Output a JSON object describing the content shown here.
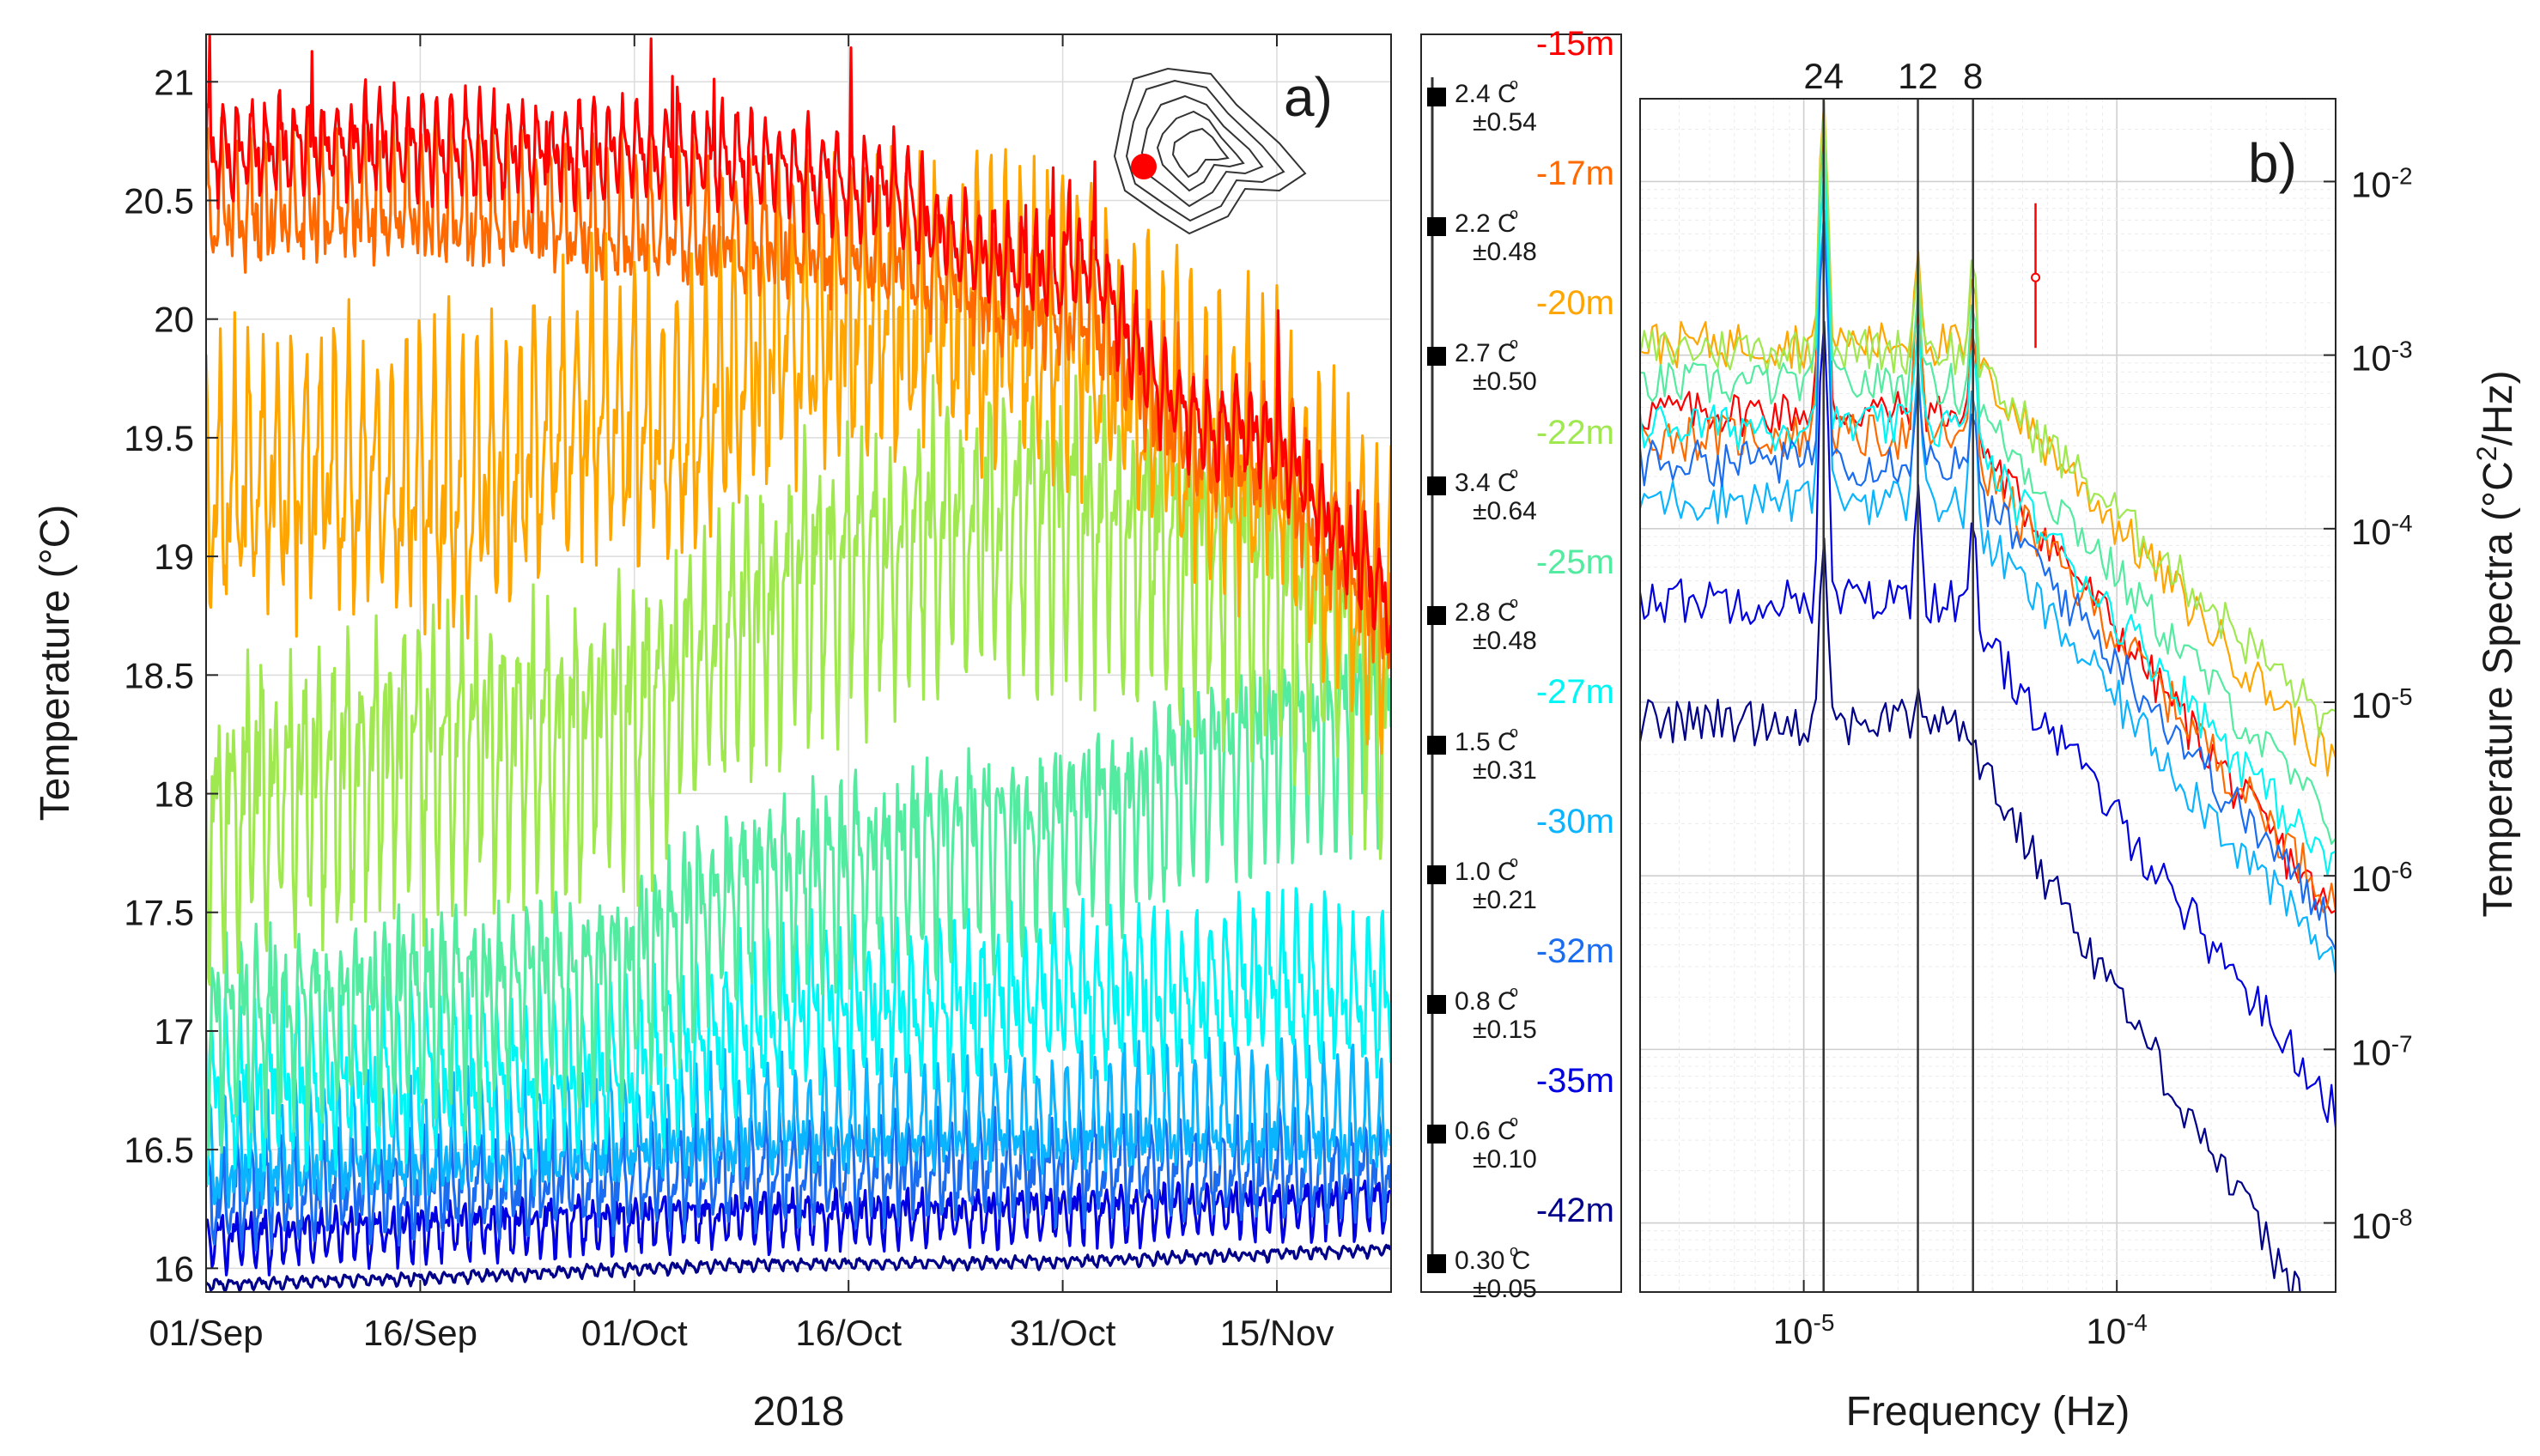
{
  "chart_data": [
    {
      "id": "a",
      "type": "line",
      "panel_label": "a)",
      "xlabel": "2018",
      "ylabel": "Temperature (°C)",
      "ylim": [
        15.9,
        21.2
      ],
      "xlim_days": [
        0,
        83
      ],
      "yticks": [
        {
          "v": 16,
          "label": "16"
        },
        {
          "v": 16.5,
          "label": "16.5"
        },
        {
          "v": 17,
          "label": "17"
        },
        {
          "v": 17.5,
          "label": "17.5"
        },
        {
          "v": 18,
          "label": "18"
        },
        {
          "v": 18.5,
          "label": "18.5"
        },
        {
          "v": 19,
          "label": "19"
        },
        {
          "v": 19.5,
          "label": "19.5"
        },
        {
          "v": 20,
          "label": "20"
        },
        {
          "v": 20.5,
          "label": "20.5"
        },
        {
          "v": 21,
          "label": "21"
        }
      ],
      "xticks": [
        {
          "day": 0,
          "label": "01/Sep"
        },
        {
          "day": 15,
          "label": "16/Sep"
        },
        {
          "day": 30,
          "label": "01/Oct"
        },
        {
          "day": 45,
          "label": "16/Oct"
        },
        {
          "day": 60,
          "label": "31/Oct"
        },
        {
          "day": 75,
          "label": "15/Nov"
        }
      ],
      "series": [
        {
          "name": "-15m",
          "color": "#ff0000",
          "baseline": [
            [
              0,
              20.7
            ],
            [
              10,
              20.75
            ],
            [
              20,
              20.72
            ],
            [
              30,
              20.7
            ],
            [
              40,
              20.65
            ],
            [
              48,
              20.55
            ],
            [
              53,
              20.3
            ],
            [
              58,
              20.2
            ],
            [
              62,
              20.25
            ],
            [
              66,
              19.75
            ],
            [
              70,
              19.55
            ],
            [
              75,
              19.5
            ],
            [
              78,
              19.2
            ],
            [
              83,
              18.78
            ]
          ],
          "amp": 0.25
        },
        {
          "name": "-17m",
          "color": "#ff6a00",
          "baseline": [
            [
              0,
              20.45
            ],
            [
              10,
              20.5
            ],
            [
              20,
              20.45
            ],
            [
              30,
              20.4
            ],
            [
              40,
              20.35
            ],
            [
              48,
              20.3
            ],
            [
              55,
              20.1
            ],
            [
              62,
              20.05
            ],
            [
              66,
              19.7
            ],
            [
              70,
              19.45
            ],
            [
              75,
              19.4
            ],
            [
              78,
              19.1
            ],
            [
              83,
              18.75
            ]
          ],
          "amp": 0.35
        },
        {
          "name": "-20m",
          "color": "#ffa500",
          "baseline": [
            [
              0,
              19.3
            ],
            [
              10,
              19.35
            ],
            [
              20,
              19.3
            ],
            [
              27,
              19.6
            ],
            [
              33,
              19.5
            ],
            [
              38,
              19.8
            ],
            [
              45,
              20.0
            ],
            [
              52,
              20.0
            ],
            [
              60,
              19.95
            ],
            [
              66,
              19.65
            ],
            [
              70,
              19.45
            ],
            [
              75,
              19.4
            ],
            [
              78,
              19.1
            ],
            [
              83,
              18.75
            ]
          ],
          "amp": 0.7
        },
        {
          "name": "-22m",
          "color": "#9fe84f",
          "baseline": [
            [
              0,
              17.9
            ],
            [
              10,
              18.1
            ],
            [
              20,
              18.2
            ],
            [
              30,
              18.3
            ],
            [
              36,
              18.6
            ],
            [
              42,
              18.9
            ],
            [
              50,
              19.1
            ],
            [
              58,
              19.15
            ],
            [
              64,
              19.1
            ],
            [
              70,
              19.0
            ],
            [
              75,
              18.9
            ],
            [
              80,
              18.6
            ],
            [
              83,
              18.2
            ]
          ],
          "amp": 0.7
        },
        {
          "name": "-25m",
          "color": "#52eba0",
          "baseline": [
            [
              0,
              17.0
            ],
            [
              10,
              17.1
            ],
            [
              20,
              17.15
            ],
            [
              30,
              17.25
            ],
            [
              36,
              17.55
            ],
            [
              42,
              17.65
            ],
            [
              50,
              17.75
            ],
            [
              58,
              17.85
            ],
            [
              64,
              17.9
            ],
            [
              70,
              18.1
            ],
            [
              75,
              18.2
            ],
            [
              80,
              18.3
            ],
            [
              83,
              18.3
            ]
          ],
          "amp": 0.5
        },
        {
          "name": "-27m",
          "color": "#00f5f5",
          "baseline": [
            [
              0,
              16.75
            ],
            [
              10,
              16.8
            ],
            [
              20,
              16.82
            ],
            [
              30,
              16.85
            ],
            [
              36,
              17.0
            ],
            [
              42,
              17.1
            ],
            [
              50,
              17.1
            ],
            [
              58,
              17.15
            ],
            [
              66,
              17.15
            ],
            [
              75,
              17.2
            ],
            [
              83,
              17.15
            ]
          ],
          "amp": 0.4
        },
        {
          "name": "-30m",
          "color": "#0ab4ff",
          "baseline": [
            [
              0,
              16.45
            ],
            [
              10,
              16.5
            ],
            [
              20,
              16.52
            ],
            [
              30,
              16.55
            ],
            [
              40,
              16.6
            ],
            [
              50,
              16.6
            ],
            [
              60,
              16.62
            ],
            [
              70,
              16.65
            ],
            [
              83,
              16.6
            ]
          ],
          "amp": 0.3
        },
        {
          "name": "-32m",
          "color": "#1a6cf0",
          "baseline": [
            [
              0,
              16.3
            ],
            [
              10,
              16.33
            ],
            [
              20,
              16.35
            ],
            [
              30,
              16.38
            ],
            [
              40,
              16.4
            ],
            [
              50,
              16.42
            ],
            [
              60,
              16.42
            ],
            [
              70,
              16.42
            ],
            [
              83,
              16.4
            ]
          ],
          "amp": 0.25
        },
        {
          "name": "-35m",
          "color": "#0000e0",
          "baseline": [
            [
              0,
              16.12
            ],
            [
              10,
              16.15
            ],
            [
              20,
              16.18
            ],
            [
              30,
              16.2
            ],
            [
              40,
              16.22
            ],
            [
              50,
              16.22
            ],
            [
              60,
              16.24
            ],
            [
              70,
              16.25
            ],
            [
              83,
              16.28
            ]
          ],
          "amp": 0.14
        },
        {
          "name": "-42m",
          "color": "#00008b",
          "baseline": [
            [
              0,
              15.93
            ],
            [
              10,
              15.95
            ],
            [
              20,
              15.97
            ],
            [
              30,
              16.0
            ],
            [
              40,
              16.02
            ],
            [
              50,
              16.02
            ],
            [
              60,
              16.03
            ],
            [
              70,
              16.05
            ],
            [
              83,
              16.08
            ]
          ],
          "amp": 0.03
        }
      ]
    },
    {
      "id": "b",
      "type": "line",
      "panel_label": "b)",
      "xscale": "log",
      "yscale": "log",
      "xlabel": "Frequency (Hz)",
      "ylabel": "Temperature Spectra (°C",
      "ylabel_sup": "2",
      "ylabel_tail": "/Hz)",
      "xlim": [
        3e-06,
        0.0005
      ],
      "ylim": [
        4e-09,
        0.03
      ],
      "xticks": [
        {
          "v": 1e-05,
          "base": "10",
          "exp": "-5"
        },
        {
          "v": 0.0001,
          "base": "10",
          "exp": "-4"
        }
      ],
      "yticks": [
        {
          "v": 1e-08,
          "base": "10",
          "exp": "-8"
        },
        {
          "v": 1e-07,
          "base": "10",
          "exp": "-7"
        },
        {
          "v": 1e-06,
          "base": "10",
          "exp": "-6"
        },
        {
          "v": 1e-05,
          "base": "10",
          "exp": "-5"
        },
        {
          "v": 0.0001,
          "base": "10",
          "exp": "-4"
        },
        {
          "v": 0.001,
          "base": "10",
          "exp": "-3"
        },
        {
          "v": 0.01,
          "base": "10",
          "exp": "-2"
        }
      ],
      "period_lines": [
        {
          "label": "24",
          "freq": 1.157e-05
        },
        {
          "label": "12",
          "freq": 2.315e-05
        },
        {
          "label": "8",
          "freq": 3.472e-05
        }
      ],
      "error_bar": {
        "freq": 5.5e-05,
        "center": 0.0028,
        "low": 0.0011,
        "high": 0.0075
      },
      "series": [
        {
          "name": "-15m",
          "color": "#ff0000",
          "level": 0.00048,
          "peak24": 0.025,
          "peak12": 0.0022,
          "peak8": 0.0014,
          "tail": 0.0,
          "rolloff": 2.4
        },
        {
          "name": "-17m",
          "color": "#ff6a00",
          "level": 0.00035,
          "peak24": 0.02,
          "peak12": 0.0024,
          "peak8": 0.0016,
          "tail": 0.0,
          "rolloff": 2.2
        },
        {
          "name": "-20m",
          "color": "#ffa500",
          "level": 0.0012,
          "peak24": 0.03,
          "peak12": 0.004,
          "peak8": 0.003,
          "tail": 0.0,
          "rolloff": 2.0
        },
        {
          "name": "-22m",
          "color": "#9fe84f",
          "level": 0.0011,
          "peak24": 0.028,
          "peak12": 0.0035,
          "peak8": 0.004,
          "tail": 0.0,
          "rolloff": 1.8
        },
        {
          "name": "-25m",
          "color": "#52eba0",
          "level": 0.0007,
          "peak24": 0.018,
          "peak12": 0.0025,
          "peak8": 0.0022,
          "tail": 0.0,
          "rolloff": 2.1
        },
        {
          "name": "-27m",
          "color": "#00f5f5",
          "level": 0.0004,
          "peak24": 0.012,
          "peak12": 0.0015,
          "peak8": 0.0012,
          "tail": 0.0,
          "rolloff": 2.1
        },
        {
          "name": "-30m",
          "color": "#0ab4ff",
          "level": 0.00015,
          "peak24": 0.007,
          "peak12": 0.0009,
          "peak8": 0.0007,
          "tail": 0.0,
          "rolloff": 2.2
        },
        {
          "name": "-32m",
          "color": "#1a6cf0",
          "level": 0.00025,
          "peak24": 0.006,
          "peak12": 0.0007,
          "peak8": 0.0005,
          "tail": 0.0,
          "rolloff": 2.2
        },
        {
          "name": "-35m",
          "color": "#0000e0",
          "level": 4e-05,
          "peak24": 0.0016,
          "peak12": 0.00018,
          "peak8": 0.00012,
          "tail": 0.0,
          "rolloff": 2.4
        },
        {
          "name": "-42m",
          "color": "#00008b",
          "level": 8e-06,
          "peak24": 9e-05,
          "peak12": 1.2e-05,
          "peak8": 6e-06,
          "tail": 0.0,
          "rolloff": 3.0
        }
      ]
    }
  ],
  "legend": {
    "entries": [
      {
        "depth": "-15m",
        "color": "#ff0000",
        "std": "2.4 C",
        "err": "±0.54"
      },
      {
        "depth": "-17m",
        "color": "#ff6a00",
        "std": "2.2 C",
        "err": "±0.48"
      },
      {
        "depth": "-20m",
        "color": "#ffa500",
        "std": "2.7 C",
        "err": "±0.50"
      },
      {
        "depth": "-22m",
        "color": "#9fe84f",
        "std": "3.4 C",
        "err": "±0.64"
      },
      {
        "depth": "-25m",
        "color": "#52eba0",
        "std": "2.8 C",
        "err": "±0.48"
      },
      {
        "depth": "-27m",
        "color": "#00f5f5",
        "std": "1.5 C",
        "err": "±0.31"
      },
      {
        "depth": "-30m",
        "color": "#0ab4ff",
        "std": "1.0 C",
        "err": "±0.21"
      },
      {
        "depth": "-32m",
        "color": "#1a6cf0",
        "std": "0.8 C",
        "err": "±0.15"
      },
      {
        "depth": "-35m",
        "color": "#0000e0",
        "std": "0.6 C",
        "err": "±0.10"
      },
      {
        "depth": "-42m",
        "color": "#00008b",
        "std": "0.30 C",
        "err": "±0.05"
      }
    ],
    "degree_mark": "o"
  }
}
